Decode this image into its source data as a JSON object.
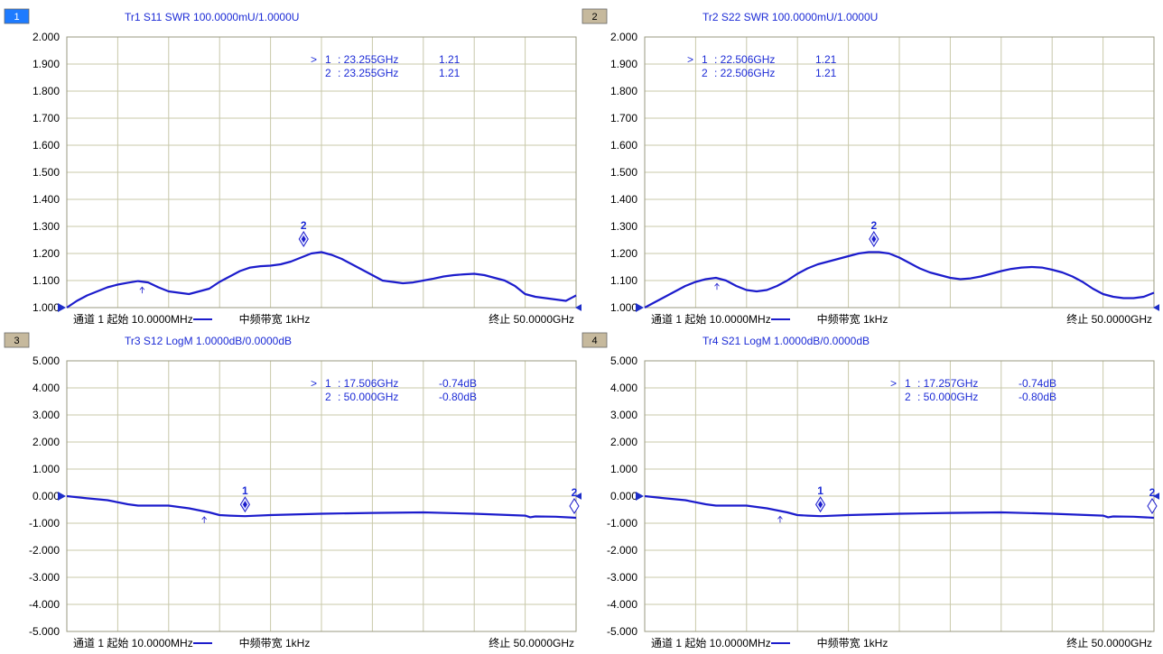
{
  "colors": {
    "trace": "#1c1ccc",
    "text_blue": "#1c2bd6",
    "grid": "#c8c8aa",
    "axis_marker": "#1e2ec8",
    "ch_active_bg": "#1e7bff",
    "ch_bg": "#c6b99d"
  },
  "footer": {
    "start_label": "通道 1 起始 10.0000MHz",
    "ifbw_label": "中频带宽 1kHz",
    "stop_label": "终止 50.0000GHz"
  },
  "chart_data": [
    {
      "type": "line",
      "channel_number": "1",
      "active": true,
      "title": "Tr1 S11 SWR 100.0000mU/1.0000U",
      "ylim": [
        1.0,
        2.0
      ],
      "xlim": [
        0.01,
        50.0
      ],
      "ytick_labels": [
        "2.000",
        "1.900",
        "1.800",
        "1.700",
        "1.600",
        "1.500",
        "1.400",
        "1.300",
        "1.200",
        "1.100",
        "1.000"
      ],
      "grid": true,
      "marker_table": [
        {
          "prefix": ">",
          "id": "1",
          "freq": ": 23.255GHz",
          "value": "1.21"
        },
        {
          "prefix": "",
          "id": "2",
          "freq": ": 23.255GHz",
          "value": "1.21"
        }
      ],
      "markers_on_trace": [
        {
          "label": "2",
          "x": 23.255,
          "y": 1.21
        }
      ],
      "cursor_x": 7.4,
      "series": [
        {
          "x": [
            0.01,
            1.0,
            2.0,
            3.0,
            4.0,
            5.0,
            6.0,
            7.0,
            8.0,
            9.0,
            10.0,
            11.0,
            12.0,
            13.0,
            14.0,
            15.0,
            16.0,
            17.0,
            18.0,
            19.0,
            20.0,
            21.0,
            22.0,
            23.0,
            24.0,
            25.0,
            26.0,
            27.0,
            28.0,
            29.0,
            30.0,
            31.0,
            32.0,
            33.0,
            34.0,
            35.0,
            36.0,
            37.0,
            38.0,
            39.0,
            40.0,
            41.0,
            42.0,
            43.0,
            44.0,
            45.0,
            46.0,
            47.0,
            48.0,
            49.0,
            50.0
          ],
          "y": [
            1.0,
            1.025,
            1.045,
            1.06,
            1.075,
            1.085,
            1.092,
            1.098,
            1.093,
            1.075,
            1.06,
            1.055,
            1.05,
            1.06,
            1.07,
            1.095,
            1.115,
            1.135,
            1.148,
            1.153,
            1.155,
            1.16,
            1.17,
            1.185,
            1.2,
            1.205,
            1.195,
            1.18,
            1.16,
            1.14,
            1.12,
            1.1,
            1.095,
            1.09,
            1.093,
            1.1,
            1.107,
            1.115,
            1.12,
            1.123,
            1.125,
            1.12,
            1.11,
            1.1,
            1.08,
            1.05,
            1.04,
            1.035,
            1.03,
            1.025,
            1.045
          ]
        }
      ]
    },
    {
      "type": "line",
      "channel_number": "2",
      "active": false,
      "title": "Tr2 S22 SWR 100.0000mU/1.0000U",
      "ylim": [
        1.0,
        2.0
      ],
      "xlim": [
        0.01,
        50.0
      ],
      "ytick_labels": [
        "2.000",
        "1.900",
        "1.800",
        "1.700",
        "1.600",
        "1.500",
        "1.400",
        "1.300",
        "1.200",
        "1.100",
        "1.000"
      ],
      "grid": true,
      "marker_table": [
        {
          "prefix": ">",
          "id": "1",
          "freq": ": 22.506GHz",
          "value": "1.21"
        },
        {
          "prefix": "",
          "id": "2",
          "freq": ": 22.506GHz",
          "value": "1.21"
        }
      ],
      "markers_on_trace": [
        {
          "label": "2",
          "x": 22.506,
          "y": 1.21
        }
      ],
      "cursor_x": 7.1,
      "series": [
        {
          "x": [
            0.01,
            1.0,
            2.0,
            3.0,
            4.0,
            5.0,
            6.0,
            7.0,
            8.0,
            9.0,
            10.0,
            11.0,
            12.0,
            13.0,
            14.0,
            15.0,
            16.0,
            17.0,
            18.0,
            19.0,
            20.0,
            21.0,
            22.0,
            23.0,
            24.0,
            25.0,
            26.0,
            27.0,
            28.0,
            29.0,
            30.0,
            31.0,
            32.0,
            33.0,
            34.0,
            35.0,
            36.0,
            37.0,
            38.0,
            39.0,
            40.0,
            41.0,
            42.0,
            43.0,
            44.0,
            45.0,
            46.0,
            47.0,
            48.0,
            49.0,
            50.0
          ],
          "y": [
            1.0,
            1.02,
            1.04,
            1.06,
            1.08,
            1.095,
            1.105,
            1.11,
            1.1,
            1.08,
            1.065,
            1.06,
            1.065,
            1.08,
            1.1,
            1.125,
            1.145,
            1.16,
            1.17,
            1.18,
            1.19,
            1.2,
            1.205,
            1.205,
            1.2,
            1.185,
            1.165,
            1.145,
            1.13,
            1.12,
            1.11,
            1.105,
            1.108,
            1.115,
            1.125,
            1.135,
            1.143,
            1.148,
            1.15,
            1.148,
            1.14,
            1.13,
            1.115,
            1.095,
            1.07,
            1.05,
            1.04,
            1.035,
            1.035,
            1.04,
            1.055
          ]
        }
      ]
    },
    {
      "type": "line",
      "channel_number": "3",
      "active": false,
      "title": "Tr3 S12 LogM 1.0000dB/0.0000dB",
      "ylim": [
        -5.0,
        5.0
      ],
      "xlim": [
        0.01,
        50.0
      ],
      "ytick_labels": [
        "5.000",
        "4.000",
        "3.000",
        "2.000",
        "1.000",
        "0.000",
        "-1.000",
        "-2.000",
        "-3.000",
        "-4.000",
        "-5.000"
      ],
      "grid": true,
      "marker_table": [
        {
          "prefix": ">",
          "id": "1",
          "freq": ": 17.506GHz",
          "value": "-0.74dB"
        },
        {
          "prefix": "",
          "id": "2",
          "freq": ": 50.000GHz",
          "value": "-0.80dB"
        }
      ],
      "markers_on_trace": [
        {
          "label": "1",
          "x": 17.506,
          "y": -0.74
        },
        {
          "label": "2",
          "x": 50.0,
          "y": -0.8
        }
      ],
      "cursor_x": 13.5,
      "series": [
        {
          "x": [
            0.01,
            2.0,
            4.0,
            6.0,
            7.0,
            8.0,
            10.0,
            12.0,
            14.0,
            15.0,
            16.0,
            17.5,
            20.0,
            25.0,
            30.0,
            35.0,
            40.0,
            45.0,
            45.5,
            46.0,
            48.0,
            50.0
          ],
          "y": [
            0.0,
            -0.08,
            -0.15,
            -0.3,
            -0.35,
            -0.35,
            -0.35,
            -0.45,
            -0.6,
            -0.7,
            -0.72,
            -0.74,
            -0.7,
            -0.65,
            -0.62,
            -0.6,
            -0.65,
            -0.72,
            -0.78,
            -0.75,
            -0.76,
            -0.8
          ]
        }
      ]
    },
    {
      "type": "line",
      "channel_number": "4",
      "active": false,
      "title": "Tr4 S21 LogM 1.0000dB/0.0000dB",
      "ylim": [
        -5.0,
        5.0
      ],
      "xlim": [
        0.01,
        50.0
      ],
      "ytick_labels": [
        "5.000",
        "4.000",
        "3.000",
        "2.000",
        "1.000",
        "0.000",
        "-1.000",
        "-2.000",
        "-3.000",
        "-4.000",
        "-5.000"
      ],
      "grid": true,
      "marker_table": [
        {
          "prefix": ">",
          "id": "1",
          "freq": ": 17.257GHz",
          "value": "-0.74dB"
        },
        {
          "prefix": "",
          "id": "2",
          "freq": ": 50.000GHz",
          "value": "-0.80dB"
        }
      ],
      "markers_on_trace": [
        {
          "label": "1",
          "x": 17.257,
          "y": -0.74
        },
        {
          "label": "2",
          "x": 50.0,
          "y": -0.8
        }
      ],
      "cursor_x": 13.3,
      "series": [
        {
          "x": [
            0.01,
            2.0,
            4.0,
            6.0,
            7.0,
            8.0,
            10.0,
            12.0,
            14.0,
            15.0,
            16.0,
            17.3,
            20.0,
            25.0,
            30.0,
            35.0,
            40.0,
            45.0,
            45.5,
            46.0,
            48.0,
            50.0
          ],
          "y": [
            0.0,
            -0.08,
            -0.15,
            -0.3,
            -0.35,
            -0.35,
            -0.35,
            -0.45,
            -0.6,
            -0.7,
            -0.72,
            -0.74,
            -0.7,
            -0.65,
            -0.62,
            -0.6,
            -0.65,
            -0.72,
            -0.78,
            -0.75,
            -0.76,
            -0.8
          ]
        }
      ]
    }
  ]
}
